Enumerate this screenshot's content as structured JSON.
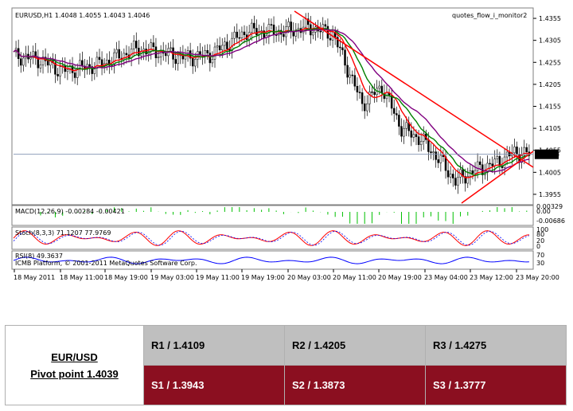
{
  "chart_data": {
    "type": "candlestick",
    "symbol_header": "EURUSD,H1  1.4048 1.4055 1.4043 1.4046",
    "watermark": "quotes_flow_i_monitor2",
    "price_ticks": [
      "1.4355",
      "1.4305",
      "1.4255",
      "1.4205",
      "1.4155",
      "1.4105",
      "1.4055",
      "1.4005",
      "1.3955"
    ],
    "price_range": [
      1.3935,
      1.4375
    ],
    "current_price": "1.4046",
    "time_labels": [
      "18 May 2011",
      "18 May 11:00",
      "18 May 19:00",
      "19 May 03:00",
      "19 May 11:00",
      "19 May 19:00",
      "20 May 03:00",
      "20 May 11:00",
      "20 May 19:00",
      "23 May 04:00",
      "23 May 12:00",
      "23 May 20:00"
    ],
    "trendlines": {
      "color": "#ff0000",
      "upper": "descending resistance",
      "lower": "ascending support"
    },
    "moving_averages": [
      {
        "color": "#ff0000"
      },
      {
        "color": "#008000"
      },
      {
        "color": "#800080"
      }
    ],
    "macd": {
      "label": "MACD(12,26,9) -0.00284 -0.00421",
      "ticks": [
        "0.00329",
        "0.00",
        "-0.00686"
      ],
      "color": "#00c000"
    },
    "stoch": {
      "label": "Stoch(8,3,3) 71.1207 77.9769",
      "ticks": [
        "100",
        "80",
        "20",
        "0"
      ],
      "color": "#ff0000"
    },
    "rsi": {
      "label": "RSI(8) 49.3637",
      "copyright": "ICMB Platform, © 2001-2011 MetaQuotes Software Corp.",
      "ticks": [
        "70",
        "30"
      ],
      "color": "#0000ff"
    }
  },
  "pivot": {
    "pair": "EUR/USD",
    "pivot_label": "Pivot point 1.4039",
    "r1": "R1 / 1.4109",
    "r2": "R2 / 1.4205",
    "r3": "R3 / 1.4275",
    "s1": "S1 / 1.3943",
    "s2": "S2 / 1.3873",
    "s3": "S3 / 1.3777"
  }
}
